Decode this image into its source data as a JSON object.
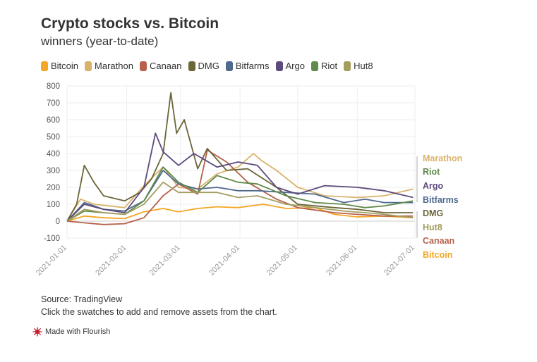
{
  "title": "Crypto stocks vs. Bitcoin",
  "subtitle": "winners (year-to-date)",
  "legend": [
    {
      "name": "Bitcoin",
      "color": "#f5a623"
    },
    {
      "name": "Marathon",
      "color": "#d9b26a"
    },
    {
      "name": "Canaan",
      "color": "#b5614b"
    },
    {
      "name": "DMG",
      "color": "#6b6538"
    },
    {
      "name": "Bitfarms",
      "color": "#4f6a8f"
    },
    {
      "name": "Argo",
      "color": "#5c4a7d"
    },
    {
      "name": "Riot",
      "color": "#5e8a4a"
    },
    {
      "name": "Hut8",
      "color": "#a39d5e"
    }
  ],
  "source": "Source: TradingView",
  "note": "Click the swatches to add and remove assets from the chart.",
  "made_with": "Made with Flourish",
  "chart_data": {
    "type": "line",
    "ylim": [
      -100,
      800
    ],
    "yticks": [
      -100,
      0,
      100,
      200,
      300,
      400,
      500,
      600,
      700,
      800
    ],
    "xlim": [
      "2021-01-01",
      "2021-07-01"
    ],
    "xticks": [
      "2021-01-01",
      "2021-02-01",
      "2021-03-01",
      "2021-04-01",
      "2021-05-01",
      "2021-06-01",
      "2021-07-01"
    ],
    "grid": true,
    "end_labels": [
      "Marathon",
      "Riot",
      "Argo",
      "Bitfarms",
      "DMG",
      "Hut8",
      "Canaan",
      "Bitcoin"
    ],
    "series": [
      {
        "name": "Bitcoin",
        "color": "#f5a623",
        "x": [
          "2021-01-01",
          "2021-01-10",
          "2021-01-20",
          "2021-01-31",
          "2021-02-10",
          "2021-02-20",
          "2021-02-28",
          "2021-03-10",
          "2021-03-20",
          "2021-03-31",
          "2021-04-13",
          "2021-04-25",
          "2021-05-10",
          "2021-05-20",
          "2021-06-01",
          "2021-06-15",
          "2021-06-30"
        ],
        "y": [
          0,
          30,
          20,
          15,
          55,
          75,
          55,
          75,
          85,
          80,
          100,
          75,
          80,
          40,
          25,
          30,
          20
        ]
      },
      {
        "name": "Marathon",
        "color": "#d9b26a",
        "x": [
          "2021-01-01",
          "2021-01-08",
          "2021-01-15",
          "2021-01-31",
          "2021-02-10",
          "2021-02-20",
          "2021-02-28",
          "2021-03-10",
          "2021-03-20",
          "2021-03-31",
          "2021-04-08",
          "2021-04-12",
          "2021-04-20",
          "2021-05-01",
          "2021-05-15",
          "2021-06-01",
          "2021-06-15",
          "2021-06-30"
        ],
        "y": [
          0,
          130,
          100,
          80,
          210,
          320,
          200,
          190,
          280,
          320,
          400,
          360,
          300,
          200,
          150,
          140,
          150,
          190
        ]
      },
      {
        "name": "Canaan",
        "color": "#b5614b",
        "x": [
          "2021-01-01",
          "2021-01-10",
          "2021-01-20",
          "2021-01-31",
          "2021-02-10",
          "2021-02-20",
          "2021-02-28",
          "2021-03-10",
          "2021-03-15",
          "2021-03-25",
          "2021-04-05",
          "2021-04-20",
          "2021-05-01",
          "2021-05-20",
          "2021-06-01",
          "2021-06-15",
          "2021-06-30"
        ],
        "y": [
          0,
          -10,
          -20,
          -15,
          20,
          150,
          220,
          160,
          420,
          350,
          230,
          130,
          80,
          50,
          40,
          30,
          30
        ]
      },
      {
        "name": "DMG",
        "color": "#6b6538",
        "x": [
          "2021-01-01",
          "2021-01-06",
          "2021-01-10",
          "2021-01-15",
          "2021-01-20",
          "2021-01-31",
          "2021-02-08",
          "2021-02-14",
          "2021-02-20",
          "2021-02-24",
          "2021-02-27",
          "2021-03-03",
          "2021-03-10",
          "2021-03-15",
          "2021-03-25",
          "2021-04-05",
          "2021-04-20",
          "2021-05-01",
          "2021-05-20",
          "2021-06-01",
          "2021-06-15",
          "2021-06-30"
        ],
        "y": [
          0,
          100,
          330,
          230,
          150,
          120,
          170,
          250,
          400,
          760,
          520,
          600,
          310,
          430,
          300,
          310,
          200,
          100,
          80,
          70,
          50,
          50
        ]
      },
      {
        "name": "Bitfarms",
        "color": "#4f6a8f",
        "x": [
          "2021-01-01",
          "2021-01-10",
          "2021-01-20",
          "2021-01-31",
          "2021-02-10",
          "2021-02-20",
          "2021-02-28",
          "2021-03-10",
          "2021-03-20",
          "2021-03-31",
          "2021-04-10",
          "2021-04-25",
          "2021-05-10",
          "2021-05-25",
          "2021-06-05",
          "2021-06-15",
          "2021-06-30"
        ],
        "y": [
          0,
          110,
          70,
          60,
          120,
          300,
          220,
          190,
          200,
          180,
          180,
          170,
          160,
          110,
          130,
          110,
          110
        ]
      },
      {
        "name": "Argo",
        "color": "#5c4a7d",
        "x": [
          "2021-01-01",
          "2021-01-10",
          "2021-01-20",
          "2021-01-31",
          "2021-02-10",
          "2021-02-16",
          "2021-02-20",
          "2021-02-28",
          "2021-03-08",
          "2021-03-20",
          "2021-03-31",
          "2021-04-10",
          "2021-04-20",
          "2021-05-01",
          "2021-05-15",
          "2021-06-01",
          "2021-06-15",
          "2021-06-30"
        ],
        "y": [
          0,
          100,
          70,
          50,
          200,
          520,
          410,
          330,
          400,
          320,
          350,
          330,
          200,
          160,
          210,
          200,
          180,
          140
        ]
      },
      {
        "name": "Riot",
        "color": "#5e8a4a",
        "x": [
          "2021-01-01",
          "2021-01-10",
          "2021-01-20",
          "2021-01-31",
          "2021-02-10",
          "2021-02-20",
          "2021-02-28",
          "2021-03-10",
          "2021-03-20",
          "2021-03-31",
          "2021-04-10",
          "2021-04-25",
          "2021-05-10",
          "2021-05-25",
          "2021-06-05",
          "2021-06-15",
          "2021-06-30"
        ],
        "y": [
          0,
          60,
          50,
          40,
          120,
          320,
          230,
          170,
          270,
          230,
          220,
          150,
          110,
          100,
          80,
          90,
          120
        ]
      },
      {
        "name": "Hut8",
        "color": "#a39d5e",
        "x": [
          "2021-01-01",
          "2021-01-10",
          "2021-01-20",
          "2021-01-31",
          "2021-02-10",
          "2021-02-20",
          "2021-02-28",
          "2021-03-10",
          "2021-03-20",
          "2021-03-31",
          "2021-04-10",
          "2021-04-25",
          "2021-05-10",
          "2021-05-25",
          "2021-06-05",
          "2021-06-15",
          "2021-06-30"
        ],
        "y": [
          0,
          70,
          50,
          40,
          100,
          230,
          170,
          170,
          170,
          140,
          150,
          100,
          80,
          60,
          50,
          40,
          20
        ]
      }
    ]
  }
}
